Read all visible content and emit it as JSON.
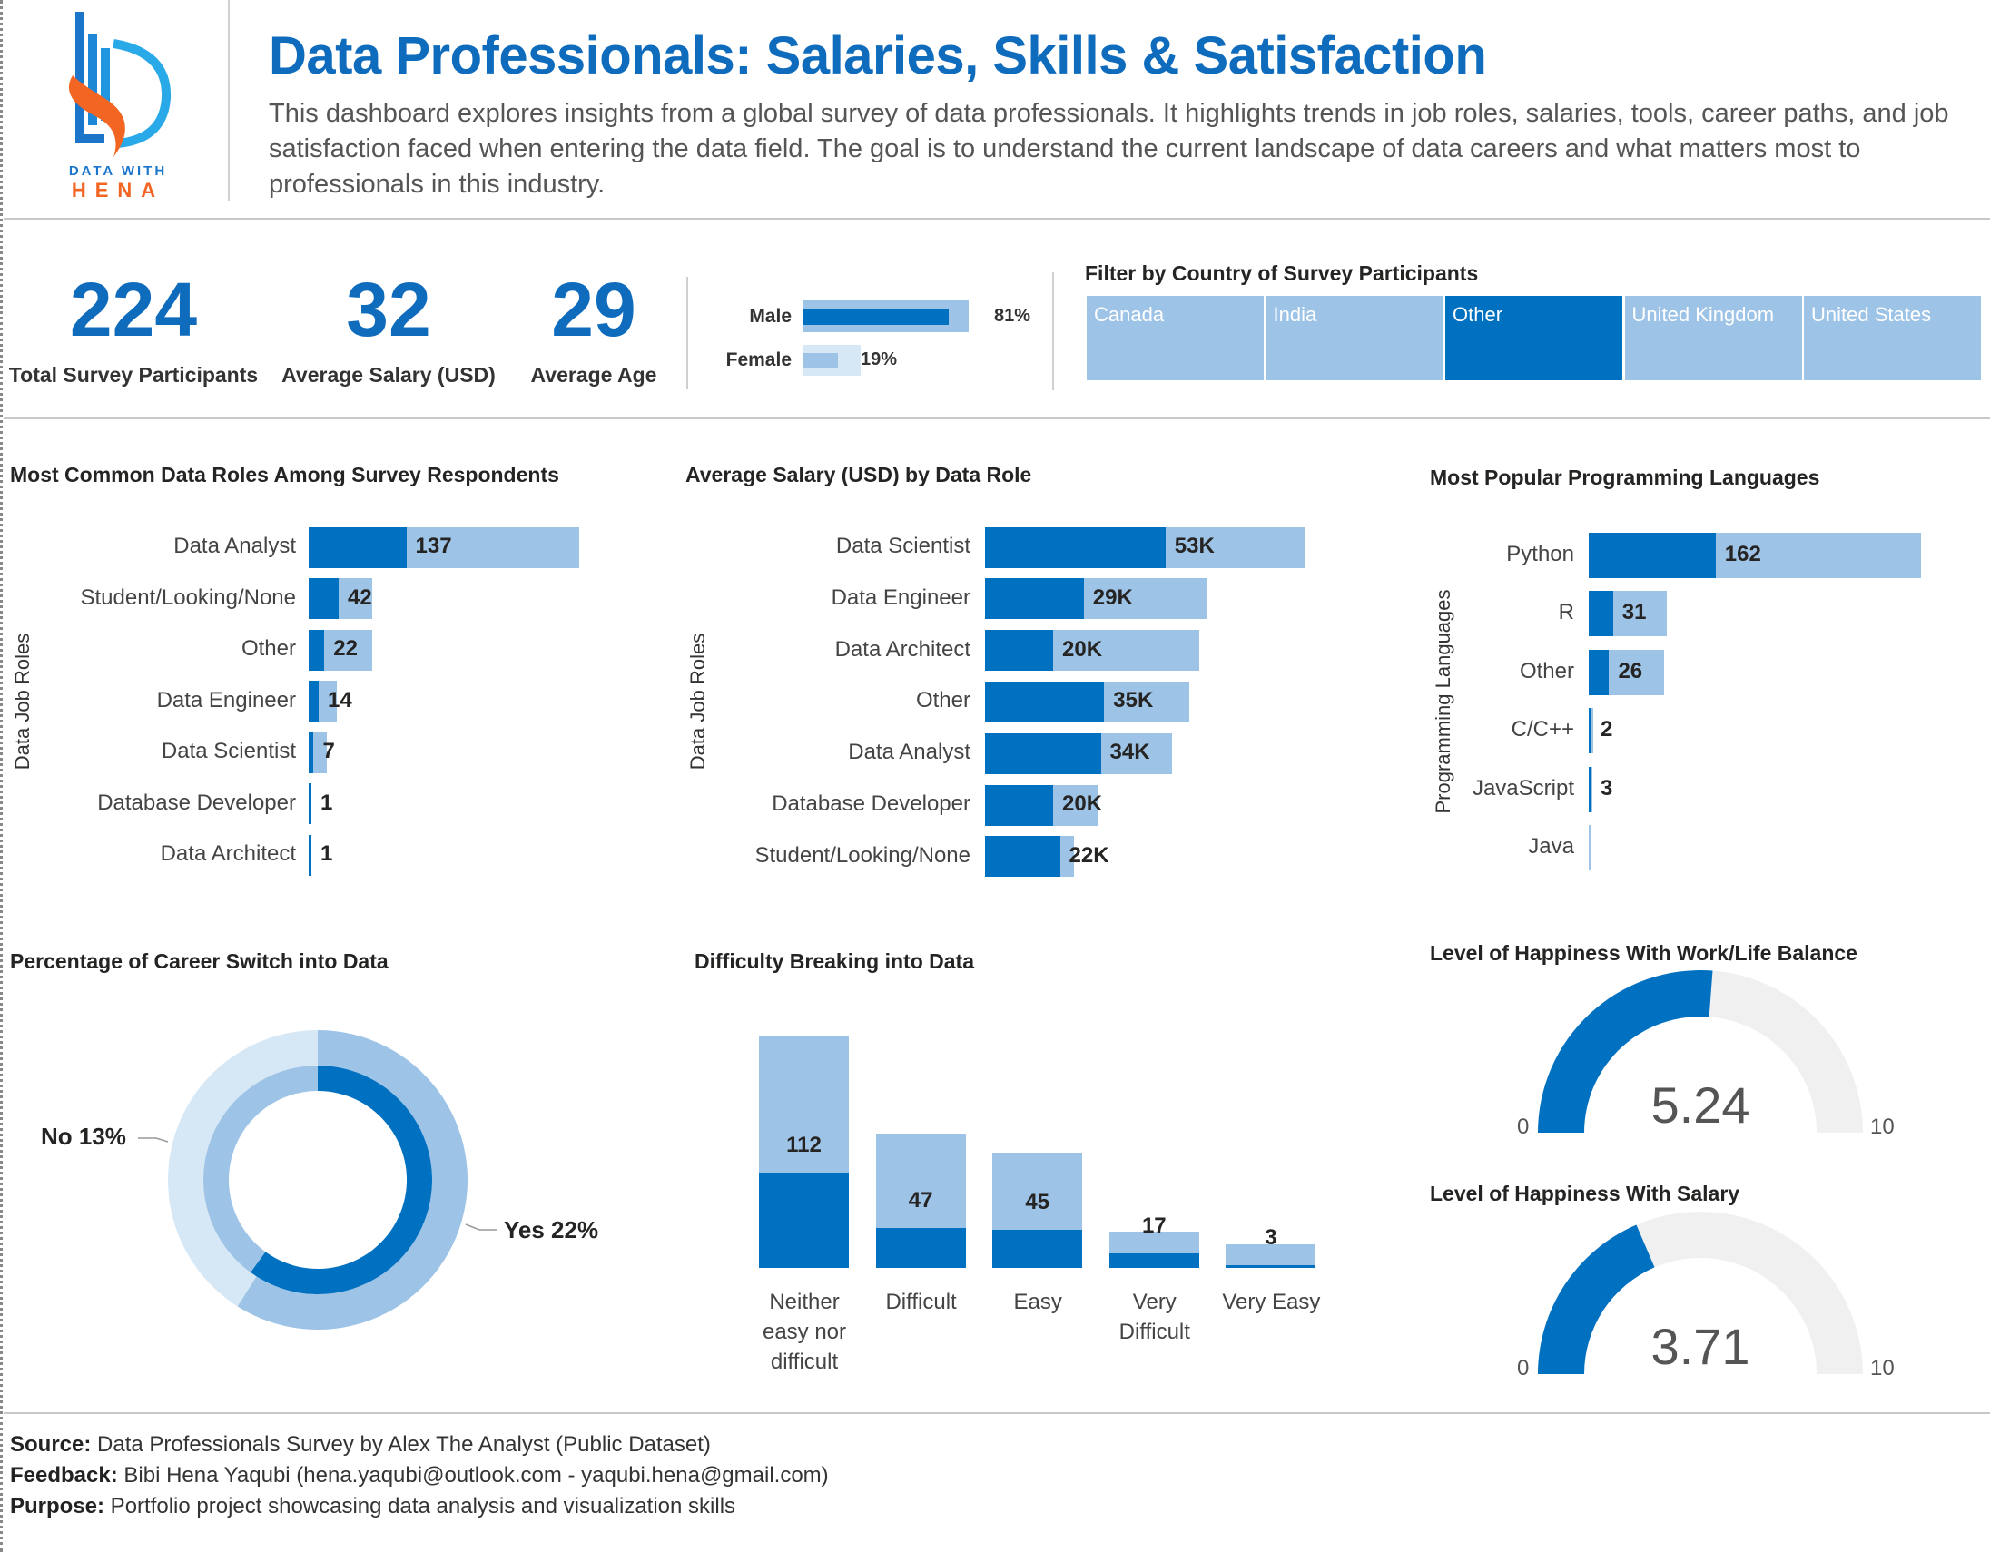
{
  "header": {
    "logo": {
      "line1": "DATA WITH",
      "line2": "HENA"
    },
    "title": "Data Professionals: Salaries, Skills & Satisfaction",
    "description": "This dashboard explores insights from a global survey of data professionals. It highlights trends in job roles, salaries, tools, career paths, and job satisfaction faced when entering the data field. The goal is to understand the current landscape of data careers and what matters most to professionals in this industry."
  },
  "kpis": [
    {
      "value": "224",
      "label": "Total Survey Participants"
    },
    {
      "value": "32",
      "label": "Average Salary (USD)"
    },
    {
      "value": "29",
      "label": "Average Age"
    }
  ],
  "gender": [
    {
      "label": "Male",
      "value": "81%",
      "percent": 81
    },
    {
      "label": "Female",
      "value": "19%",
      "percent": 19
    }
  ],
  "filter": {
    "title": "Filter by Country of Survey Participants",
    "options": [
      "Canada",
      "India",
      "Other",
      "United Kingdom",
      "United States"
    ],
    "selected": "Other"
  },
  "colors": {
    "highlight": "#0070C0",
    "total": "#9DC3E6",
    "pale": "#D6E7F5",
    "gauge_bg": "#F0F0F0",
    "title": "#0F6CBD"
  },
  "chart_data": [
    {
      "id": "roles",
      "type": "bar",
      "orientation": "horizontal",
      "title": "Most Common Data Roles Among Survey Respondents",
      "ylabel": "Data Job Roles",
      "categories": [
        "Data Analyst",
        "Student/Looking/None",
        "Other",
        "Data Engineer",
        "Data Scientist",
        "Database Developer",
        "Data Architect"
      ],
      "highlighted": [
        137,
        42,
        22,
        14,
        7,
        1,
        1
      ],
      "total": [
        379,
        89,
        89,
        39,
        25,
        2,
        2
      ],
      "labels": [
        "137",
        "42",
        "22",
        "14",
        "7",
        "1",
        "1"
      ]
    },
    {
      "id": "salary",
      "type": "bar",
      "orientation": "horizontal",
      "title": "Average Salary (USD) by Data Role",
      "ylabel": "Data Job Roles",
      "categories": [
        "Data Scientist",
        "Data Engineer",
        "Data Architect",
        "Other",
        "Data Analyst",
        "Database Developer",
        "Student/Looking/None"
      ],
      "highlighted": [
        53,
        29,
        20,
        35,
        34,
        20,
        22
      ],
      "total": [
        94,
        65,
        63,
        60,
        55,
        33,
        26
      ],
      "labels": [
        "53K",
        "29K",
        "20K",
        "35K",
        "34K",
        "20K",
        "22K"
      ]
    },
    {
      "id": "languages",
      "type": "bar",
      "orientation": "horizontal",
      "title": "Most Popular Programming Languages",
      "ylabel": "Programming Languages",
      "categories": [
        "Python",
        "R",
        "Other",
        "C/C++",
        "JavaScript",
        "Java"
      ],
      "highlighted": [
        162,
        31,
        26,
        2,
        3,
        0
      ],
      "total": [
        424,
        100,
        96,
        6,
        5,
        2
      ],
      "labels": [
        "162",
        "31",
        "26",
        "2",
        "3",
        ""
      ]
    },
    {
      "id": "career",
      "type": "pie",
      "variant": "nested-donut",
      "title": "Percentage of Career Switch into Data",
      "slices": [
        {
          "name": "Yes",
          "label": "Yes 22%",
          "outer_fraction": 0.59,
          "inner_fraction": 0.6
        },
        {
          "name": "No",
          "label": "No 13%",
          "outer_fraction": 0.41,
          "inner_fraction": 0.4
        }
      ]
    },
    {
      "id": "difficulty",
      "type": "bar",
      "orientation": "vertical",
      "title": "Difficulty Breaking into Data",
      "categories": [
        "Neither easy nor difficult",
        "Difficult",
        "Easy",
        "Very Difficult",
        "Very Easy"
      ],
      "highlighted": [
        112,
        47,
        45,
        17,
        3
      ],
      "total": [
        272,
        158,
        136,
        43,
        28
      ],
      "labels": [
        "112",
        "47",
        "45",
        "17",
        "3"
      ]
    },
    {
      "id": "gauge_wlb",
      "type": "gauge",
      "title": "Level of Happiness With Work/Life Balance",
      "value": 5.24,
      "value_label": "5.24",
      "min": 0,
      "max": 10,
      "min_label": "0",
      "max_label": "10"
    },
    {
      "id": "gauge_salary",
      "type": "gauge",
      "title": "Level of Happiness With Salary",
      "value": 3.71,
      "value_label": "3.71",
      "min": 0,
      "max": 10,
      "min_label": "0",
      "max_label": "10"
    }
  ],
  "footer": [
    {
      "key": "Source:",
      "text": " Data Professionals Survey by Alex The Analyst (Public Dataset)"
    },
    {
      "key": "Feedback:",
      "text": " Bibi Hena Yaqubi (hena.yaqubi@outlook.com - yaqubi.hena@gmail.com)"
    },
    {
      "key": "Purpose:",
      "text": " Portfolio project showcasing data analysis and visualization skills"
    }
  ]
}
